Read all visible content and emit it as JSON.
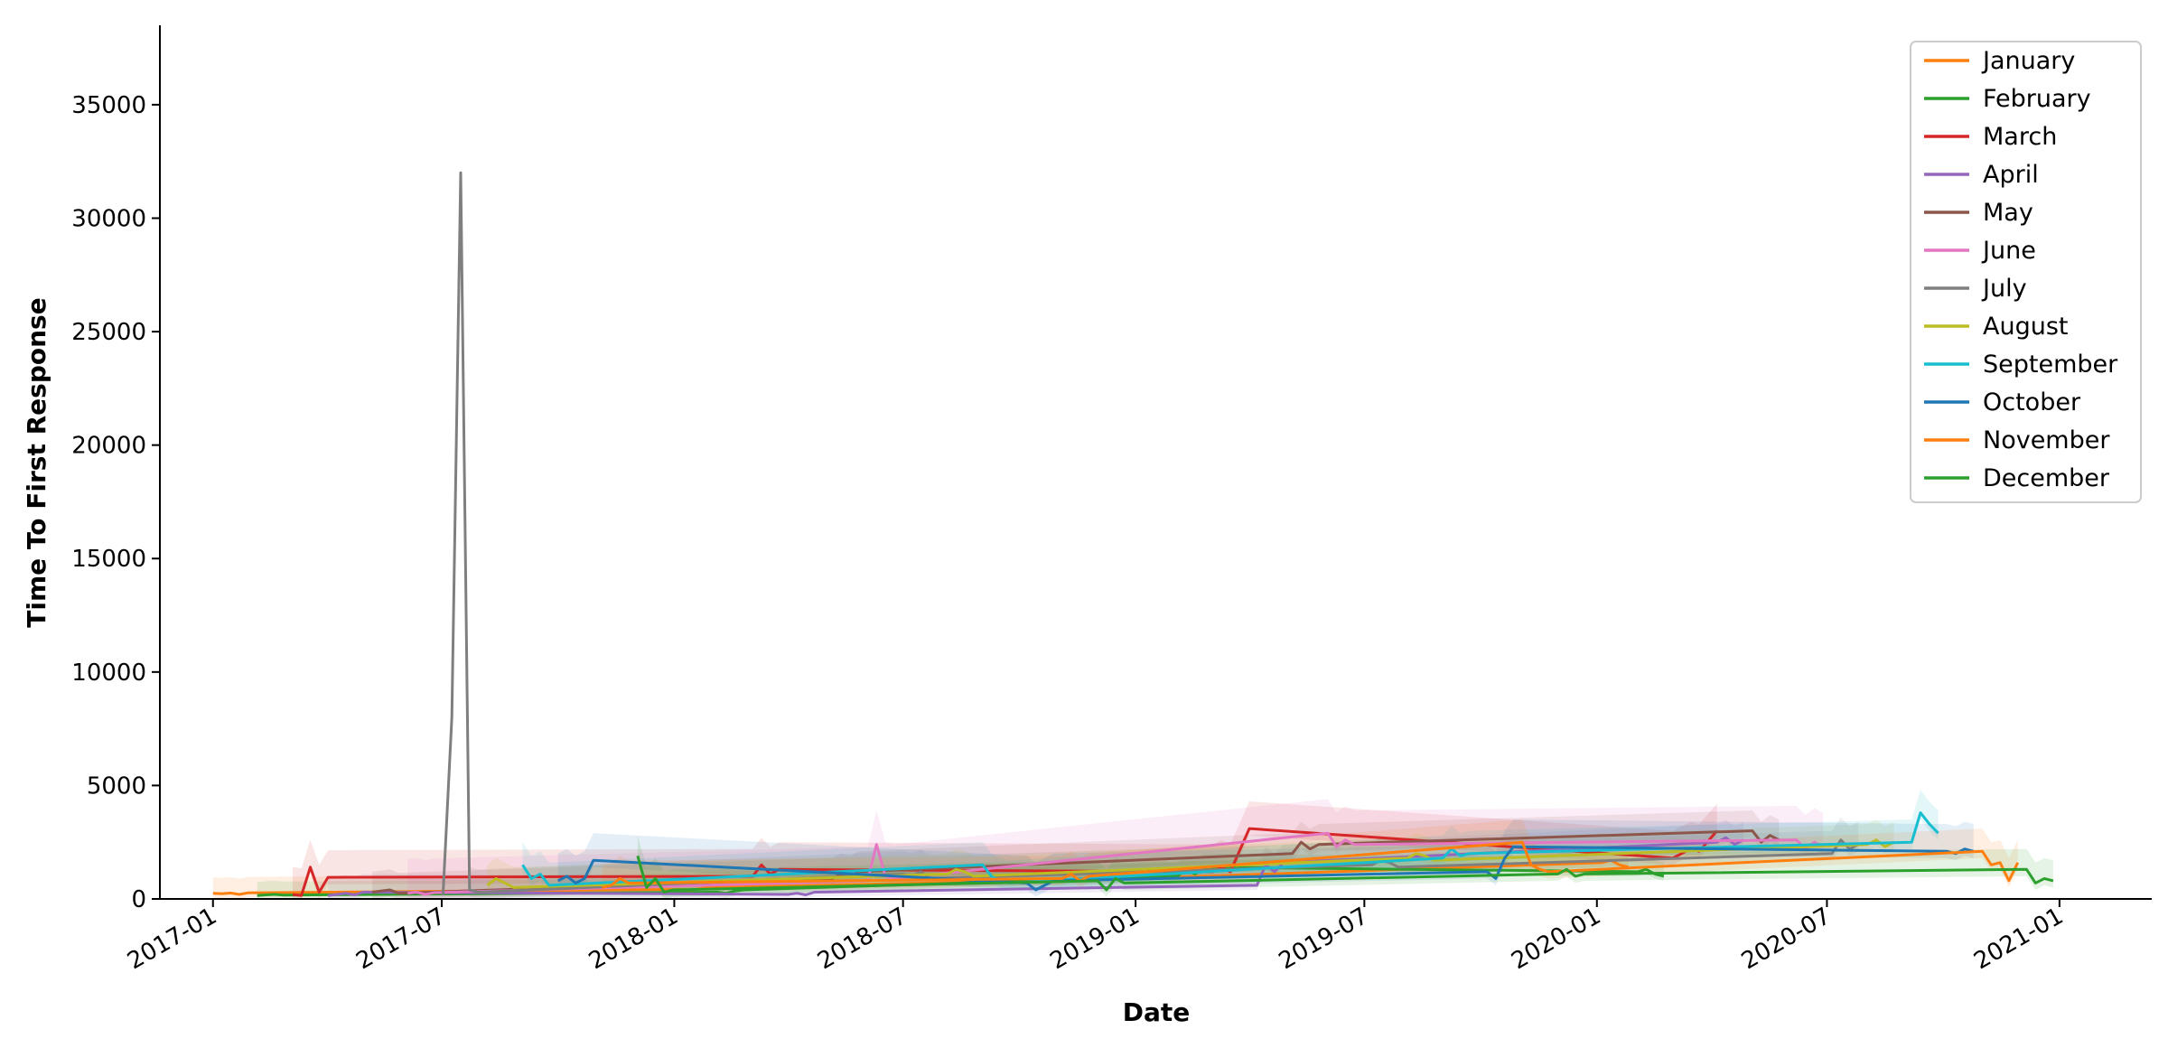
{
  "chart_data": {
    "type": "line",
    "title": "",
    "xlabel": "Date",
    "ylabel": "Time To First Response",
    "xlim": [
      "2016-11-20",
      "2021-03-15"
    ],
    "ylim": [
      0,
      38500
    ],
    "x_ticks": [
      "2017-01",
      "2017-07",
      "2018-01",
      "2018-07",
      "2019-01",
      "2019-07",
      "2020-01",
      "2020-07",
      "2021-01"
    ],
    "y_ticks": [
      0,
      5000,
      10000,
      15000,
      20000,
      25000,
      30000,
      35000
    ],
    "grid": false,
    "legend_position": "top-right",
    "series": [
      {
        "name": "January",
        "color": "#ff7f0e",
        "points": [
          [
            "2017-01-01",
            250
          ],
          [
            "2017-01-08",
            230
          ],
          [
            "2017-01-15",
            260
          ],
          [
            "2017-01-22",
            200
          ],
          [
            "2017-01-29",
            270
          ],
          [
            "2018-01-07",
            420
          ],
          [
            "2018-01-14",
            380
          ],
          [
            "2018-01-21",
            450
          ],
          [
            "2018-01-28",
            500
          ],
          [
            "2019-01-06",
            900
          ],
          [
            "2019-01-13",
            1000
          ],
          [
            "2019-01-20",
            1100
          ],
          [
            "2019-01-27",
            950
          ],
          [
            "2020-01-05",
            1600
          ],
          [
            "2020-01-12",
            1700
          ],
          [
            "2020-01-19",
            1500
          ],
          [
            "2020-01-26",
            1400
          ]
        ],
        "band": [
          200,
          700
        ]
      },
      {
        "name": "February",
        "color": "#2ca02c",
        "points": [
          [
            "2017-02-05",
            150
          ],
          [
            "2017-02-12",
            180
          ],
          [
            "2017-02-19",
            200
          ],
          [
            "2017-02-26",
            170
          ],
          [
            "2018-02-04",
            300
          ],
          [
            "2018-02-11",
            250
          ],
          [
            "2018-02-18",
            350
          ],
          [
            "2018-02-25",
            400
          ],
          [
            "2019-02-03",
            1000
          ],
          [
            "2019-02-10",
            1300
          ],
          [
            "2019-02-17",
            1100
          ],
          [
            "2019-02-24",
            1400
          ],
          [
            "2020-02-02",
            1200
          ],
          [
            "2020-02-09",
            1300
          ],
          [
            "2020-02-16",
            1100
          ],
          [
            "2020-02-23",
            1000
          ]
        ],
        "band": [
          200,
          600
        ]
      },
      {
        "name": "March",
        "color": "#d62728",
        "points": [
          [
            "2017-03-05",
            200
          ],
          [
            "2017-03-12",
            150
          ],
          [
            "2017-03-19",
            1400
          ],
          [
            "2017-03-26",
            300
          ],
          [
            "2017-04-02",
            950
          ],
          [
            "2018-03-04",
            1000
          ],
          [
            "2018-03-11",
            1500
          ],
          [
            "2018-03-18",
            1100
          ],
          [
            "2018-03-25",
            1300
          ],
          [
            "2019-03-03",
            1200
          ],
          [
            "2019-03-10",
            1400
          ],
          [
            "2019-03-17",
            1200
          ],
          [
            "2019-04-01",
            3100
          ],
          [
            "2020-03-01",
            1800
          ],
          [
            "2020-03-08",
            2000
          ],
          [
            "2020-03-15",
            2200
          ],
          [
            "2020-03-22",
            2100
          ],
          [
            "2020-04-05",
            3000
          ]
        ],
        "band": [
          300,
          1200
        ]
      },
      {
        "name": "April",
        "color": "#9467bd",
        "points": [
          [
            "2017-04-02",
            150
          ],
          [
            "2017-04-09",
            200
          ],
          [
            "2017-04-16",
            250
          ],
          [
            "2017-04-23",
            180
          ],
          [
            "2017-04-30",
            300
          ],
          [
            "2018-04-01",
            200
          ],
          [
            "2018-04-08",
            250
          ],
          [
            "2018-04-15",
            180
          ],
          [
            "2018-04-22",
            300
          ],
          [
            "2019-04-07",
            600
          ],
          [
            "2019-04-14",
            1500
          ],
          [
            "2019-04-21",
            1200
          ],
          [
            "2019-04-28",
            1600
          ],
          [
            "2020-04-05",
            2500
          ],
          [
            "2020-04-12",
            2700
          ],
          [
            "2020-04-19",
            2400
          ],
          [
            "2020-04-26",
            2600
          ]
        ],
        "band": [
          200,
          800
        ]
      },
      {
        "name": "May",
        "color": "#8c564b",
        "points": [
          [
            "2017-05-07",
            300
          ],
          [
            "2017-05-14",
            350
          ],
          [
            "2017-05-21",
            400
          ],
          [
            "2017-05-28",
            250
          ],
          [
            "2018-05-06",
            900
          ],
          [
            "2018-05-13",
            1100
          ],
          [
            "2018-05-20",
            1000
          ],
          [
            "2018-05-27",
            1200
          ],
          [
            "2019-05-05",
            2000
          ],
          [
            "2019-05-12",
            2500
          ],
          [
            "2019-05-19",
            2200
          ],
          [
            "2019-05-26",
            2400
          ],
          [
            "2020-05-03",
            3000
          ],
          [
            "2020-05-10",
            2500
          ],
          [
            "2020-05-17",
            2800
          ],
          [
            "2020-05-24",
            2600
          ]
        ],
        "band": [
          300,
          900
        ]
      },
      {
        "name": "June",
        "color": "#e377c2",
        "points": [
          [
            "2017-06-04",
            250
          ],
          [
            "2017-06-11",
            300
          ],
          [
            "2017-06-18",
            200
          ],
          [
            "2017-06-25",
            280
          ],
          [
            "2018-06-03",
            800
          ],
          [
            "2018-06-10",
            2400
          ],
          [
            "2018-06-17",
            1000
          ],
          [
            "2018-06-24",
            900
          ],
          [
            "2019-06-02",
            2900
          ],
          [
            "2019-06-09",
            2300
          ],
          [
            "2019-06-16",
            2600
          ],
          [
            "2019-06-23",
            2400
          ],
          [
            "2020-06-07",
            2600
          ],
          [
            "2020-06-14",
            2200
          ],
          [
            "2020-06-21",
            2500
          ],
          [
            "2020-06-28",
            2300
          ]
        ],
        "band": [
          300,
          1500
        ]
      },
      {
        "name": "July",
        "color": "#7f7f7f",
        "points": [
          [
            "2017-07-02",
            150
          ],
          [
            "2017-07-09",
            8000
          ],
          [
            "2017-07-16",
            32000
          ],
          [
            "2017-07-23",
            400
          ],
          [
            "2017-07-30",
            300
          ],
          [
            "2018-07-01",
            1100
          ],
          [
            "2018-07-08",
            1000
          ],
          [
            "2018-07-15",
            1200
          ],
          [
            "2018-07-22",
            900
          ],
          [
            "2019-07-07",
            1500
          ],
          [
            "2019-07-14",
            1700
          ],
          [
            "2019-07-21",
            1600
          ],
          [
            "2019-07-28",
            1400
          ],
          [
            "2020-07-05",
            2000
          ],
          [
            "2020-07-12",
            2600
          ],
          [
            "2020-07-19",
            2200
          ],
          [
            "2020-07-26",
            2400
          ]
        ],
        "band": [
          300,
          1000
        ]
      },
      {
        "name": "August",
        "color": "#bcbd22",
        "points": [
          [
            "2017-08-06",
            600
          ],
          [
            "2017-08-13",
            900
          ],
          [
            "2017-08-20",
            700
          ],
          [
            "2017-08-27",
            500
          ],
          [
            "2018-08-05",
            1100
          ],
          [
            "2018-08-12",
            1300
          ],
          [
            "2018-08-19",
            1200
          ],
          [
            "2018-08-26",
            1000
          ],
          [
            "2019-08-04",
            1800
          ],
          [
            "2019-08-11",
            2000
          ],
          [
            "2019-08-18",
            1900
          ],
          [
            "2019-08-25",
            1700
          ],
          [
            "2020-08-02",
            2400
          ],
          [
            "2020-08-09",
            2600
          ],
          [
            "2020-08-16",
            2300
          ],
          [
            "2020-08-23",
            2500
          ]
        ],
        "band": [
          300,
          900
        ]
      },
      {
        "name": "September",
        "color": "#17becf",
        "points": [
          [
            "2017-09-03",
            1500
          ],
          [
            "2017-09-10",
            900
          ],
          [
            "2017-09-17",
            1100
          ],
          [
            "2017-09-24",
            600
          ],
          [
            "2018-09-02",
            1500
          ],
          [
            "2018-09-09",
            1000
          ],
          [
            "2018-09-16",
            800
          ],
          [
            "2018-09-23",
            700
          ],
          [
            "2019-09-01",
            1800
          ],
          [
            "2019-09-08",
            2200
          ],
          [
            "2019-09-15",
            1900
          ],
          [
            "2019-09-22",
            2000
          ],
          [
            "2020-09-06",
            2500
          ],
          [
            "2020-09-13",
            3800
          ],
          [
            "2020-09-20",
            3300
          ],
          [
            "2020-09-27",
            2900
          ]
        ],
        "band": [
          300,
          1000
        ]
      },
      {
        "name": "October",
        "color": "#1f77b4",
        "points": [
          [
            "2017-10-01",
            800
          ],
          [
            "2017-10-08",
            1000
          ],
          [
            "2017-10-15",
            700
          ],
          [
            "2017-10-22",
            900
          ],
          [
            "2017-10-29",
            1700
          ],
          [
            "2018-10-07",
            700
          ],
          [
            "2018-10-14",
            400
          ],
          [
            "2018-10-21",
            600
          ],
          [
            "2018-10-28",
            800
          ],
          [
            "2019-10-06",
            1200
          ],
          [
            "2019-10-13",
            900
          ],
          [
            "2019-10-20",
            1800
          ],
          [
            "2019-10-27",
            2300
          ],
          [
            "2020-10-04",
            2100
          ],
          [
            "2020-10-11",
            2000
          ],
          [
            "2020-10-18",
            2200
          ],
          [
            "2020-10-25",
            2100
          ]
        ],
        "band": [
          300,
          1200
        ]
      },
      {
        "name": "November",
        "color": "#ff7f0e",
        "points": [
          [
            "2017-11-05",
            500
          ],
          [
            "2017-11-12",
            600
          ],
          [
            "2017-11-19",
            900
          ],
          [
            "2017-11-26",
            700
          ],
          [
            "2018-11-04",
            900
          ],
          [
            "2018-11-11",
            1100
          ],
          [
            "2018-11-18",
            800
          ],
          [
            "2018-11-25",
            1000
          ],
          [
            "2019-11-03",
            2500
          ],
          [
            "2019-11-10",
            1500
          ],
          [
            "2019-11-17",
            1300
          ],
          [
            "2019-11-24",
            1200
          ],
          [
            "2020-11-01",
            2100
          ],
          [
            "2020-11-08",
            1500
          ],
          [
            "2020-11-15",
            1600
          ],
          [
            "2020-11-22",
            800
          ],
          [
            "2020-11-29",
            1600
          ]
        ],
        "band": [
          300,
          1000
        ]
      },
      {
        "name": "December",
        "color": "#2ca02c",
        "points": [
          [
            "2017-12-03",
            1900
          ],
          [
            "2017-12-10",
            500
          ],
          [
            "2017-12-17",
            900
          ],
          [
            "2017-12-24",
            300
          ],
          [
            "2017-12-31",
            400
          ],
          [
            "2018-12-02",
            800
          ],
          [
            "2018-12-09",
            400
          ],
          [
            "2018-12-16",
            900
          ],
          [
            "2018-12-23",
            700
          ],
          [
            "2019-12-01",
            1100
          ],
          [
            "2019-12-08",
            1300
          ],
          [
            "2019-12-15",
            1000
          ],
          [
            "2019-12-22",
            1100
          ],
          [
            "2020-12-06",
            1300
          ],
          [
            "2020-12-13",
            700
          ],
          [
            "2020-12-20",
            900
          ],
          [
            "2020-12-27",
            800
          ]
        ],
        "band": [
          300,
          900
        ]
      }
    ]
  }
}
